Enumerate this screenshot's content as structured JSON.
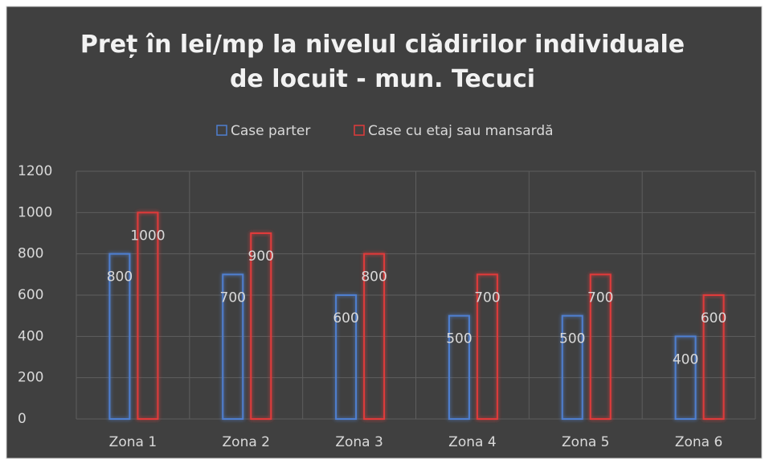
{
  "chart_data": {
    "type": "bar",
    "title": "Preț în lei/mp la nivelul clădirilor individuale de locuit - mun. Tecuci",
    "categories": [
      "Zona 1",
      "Zona 2",
      "Zona 3",
      "Zona 4",
      "Zona 5",
      "Zona 6"
    ],
    "series": [
      {
        "name": "Case parter",
        "color": "#4f7fd0",
        "values": [
          800,
          700,
          600,
          500,
          500,
          400
        ]
      },
      {
        "name": "Case cu etaj sau mansardă",
        "color": "#e03a3a",
        "values": [
          1000,
          900,
          800,
          700,
          700,
          600
        ]
      }
    ],
    "ylim": [
      0,
      1200
    ],
    "yticks": [
      0,
      200,
      400,
      600,
      800,
      1000,
      1200
    ],
    "grid": true,
    "legend": "top"
  }
}
